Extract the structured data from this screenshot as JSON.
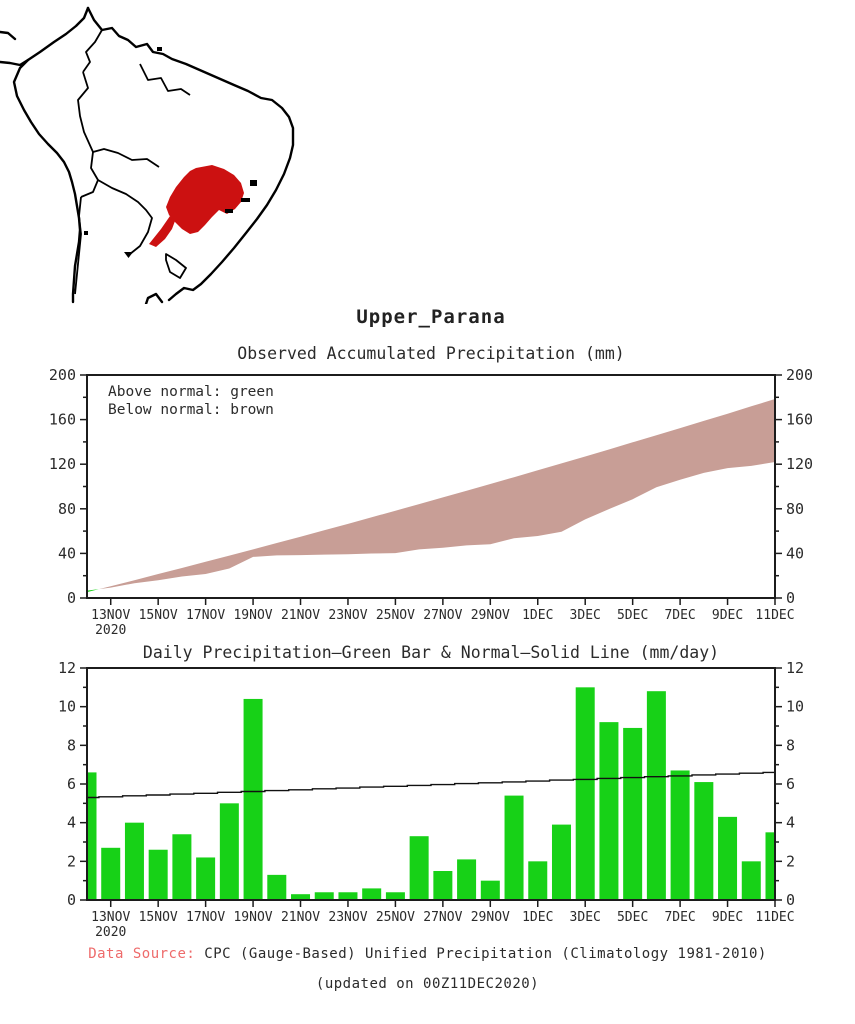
{
  "page": {
    "title": "Upper_Parana"
  },
  "colors": {
    "green": "#17d117",
    "brown": "#c89e96",
    "map_red": "#cc1111",
    "axis": "#1c1c1c",
    "text": "#2b2b2b",
    "source_label_red": "#ee6b6b"
  },
  "legend": {
    "above": "Above normal: green",
    "below": "Below normal: brown"
  },
  "x_axis": {
    "year": "2020",
    "tick_labels": [
      "13NOV",
      "15NOV",
      "17NOV",
      "19NOV",
      "21NOV",
      "23NOV",
      "25NOV",
      "27NOV",
      "29NOV",
      "1DEC",
      "3DEC",
      "5DEC",
      "7DEC",
      "9DEC",
      "11DEC"
    ]
  },
  "footer": {
    "label": "Data Source:",
    "text": " CPC (Gauge-Based) Unified Precipitation (Climatology 1981-2010)",
    "updated": "(updated on 00Z11DEC2020)"
  },
  "chart_data": [
    {
      "type": "area",
      "title": "Observed Accumulated Precipitation (mm)",
      "ylim": [
        0,
        200
      ],
      "ytick_step": 40,
      "yminor_step": 20,
      "grid": false,
      "legend_position": "top-left-inside",
      "x": [
        "12NOV",
        "13NOV",
        "14NOV",
        "15NOV",
        "16NOV",
        "17NOV",
        "18NOV",
        "19NOV",
        "20NOV",
        "21NOV",
        "22NOV",
        "23NOV",
        "24NOV",
        "25NOV",
        "26NOV",
        "27NOV",
        "28NOV",
        "29NOV",
        "30NOV",
        "1DEC",
        "2DEC",
        "3DEC",
        "4DEC",
        "5DEC",
        "6DEC",
        "7DEC",
        "8DEC",
        "9DEC",
        "10DEC",
        "11DEC"
      ],
      "fill_rule": {
        "above_normal": "green",
        "below_normal": "brown"
      },
      "series": [
        {
          "name": "observed_accumulated",
          "values": [
            6.6,
            9.3,
            13.3,
            15.9,
            19.3,
            21.5,
            26.5,
            36.9,
            38.2,
            38.5,
            38.9,
            39.3,
            39.9,
            40.3,
            43.6,
            45.1,
            47.2,
            48.2,
            53.6,
            55.6,
            59.5,
            70.5,
            79.7,
            88.6,
            99.4,
            106.1,
            112.2,
            116.5,
            118.5,
            122.0
          ]
        },
        {
          "name": "normal_accumulated",
          "values": [
            5.3,
            10.6,
            16.0,
            21.5,
            26.9,
            32.5,
            38.0,
            43.6,
            49.3,
            55.0,
            60.7,
            66.5,
            72.4,
            78.3,
            84.2,
            90.2,
            96.2,
            102.2,
            108.3,
            114.5,
            120.7,
            126.9,
            133.2,
            139.6,
            145.9,
            152.4,
            158.8,
            165.3,
            171.9,
            178.5
          ]
        }
      ]
    },
    {
      "type": "bar+line",
      "title": "Daily Precipitation–Green Bar & Normal–Solid Line (mm/day)",
      "ylim": [
        0,
        12
      ],
      "ytick_step": 2,
      "yminor_step": 1,
      "grid": false,
      "x": [
        "12NOV",
        "13NOV",
        "14NOV",
        "15NOV",
        "16NOV",
        "17NOV",
        "18NOV",
        "19NOV",
        "20NOV",
        "21NOV",
        "22NOV",
        "23NOV",
        "24NOV",
        "25NOV",
        "26NOV",
        "27NOV",
        "28NOV",
        "29NOV",
        "30NOV",
        "1DEC",
        "2DEC",
        "3DEC",
        "4DEC",
        "5DEC",
        "6DEC",
        "7DEC",
        "8DEC",
        "9DEC",
        "10DEC",
        "11DEC"
      ],
      "series": [
        {
          "name": "daily_precipitation",
          "type": "bar",
          "color": "green",
          "values": [
            6.6,
            2.7,
            4.0,
            2.6,
            3.4,
            2.2,
            5.0,
            10.4,
            1.3,
            0.3,
            0.4,
            0.4,
            0.6,
            0.4,
            3.3,
            1.5,
            2.1,
            1.0,
            5.4,
            2.0,
            3.9,
            11.0,
            9.2,
            8.9,
            10.8,
            6.7,
            6.1,
            4.3,
            2.0,
            3.5
          ]
        },
        {
          "name": "daily_normal",
          "type": "line",
          "color": "black",
          "values": [
            5.3,
            5.34,
            5.39,
            5.43,
            5.48,
            5.52,
            5.57,
            5.61,
            5.66,
            5.7,
            5.75,
            5.79,
            5.84,
            5.88,
            5.93,
            5.97,
            6.02,
            6.06,
            6.11,
            6.15,
            6.2,
            6.24,
            6.29,
            6.33,
            6.38,
            6.42,
            6.47,
            6.51,
            6.56,
            6.6
          ]
        }
      ]
    }
  ]
}
